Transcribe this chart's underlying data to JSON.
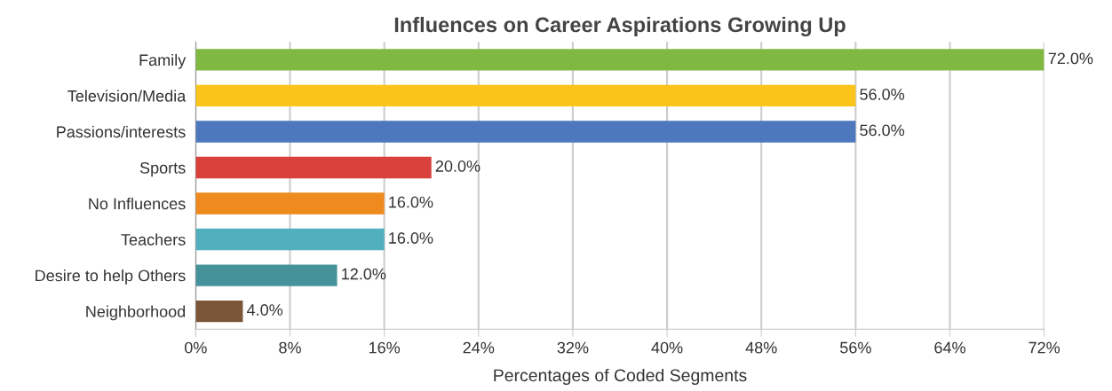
{
  "chart_data": {
    "type": "bar",
    "orientation": "horizontal",
    "title": "Influences on Career Aspirations Growing Up",
    "xlabel": "Percentages of Coded Segments",
    "categories": [
      "Family",
      "Television/Media",
      "Passions/interests",
      "Sports",
      "No Influences",
      "Teachers",
      "Desire to help Others",
      "Neighborhood"
    ],
    "values": [
      72.0,
      56.0,
      56.0,
      20.0,
      16.0,
      16.0,
      12.0,
      4.0
    ],
    "colors": [
      "#80b941",
      "#fbc41a",
      "#4d78be",
      "#d9413d",
      "#ef8a1e",
      "#52afbe",
      "#45929b",
      "#7b5537"
    ],
    "value_labels": [
      "72.0%",
      "56.0%",
      "56.0%",
      "20.0%",
      "16.0%",
      "16.0%",
      "12.0%",
      "4.0%"
    ],
    "xlim": [
      0,
      72
    ],
    "xticks": [
      {
        "value": 0,
        "label": "0%"
      },
      {
        "value": 8,
        "label": "8%"
      },
      {
        "value": 16,
        "label": "16%"
      },
      {
        "value": 24,
        "label": "24%"
      },
      {
        "value": 32,
        "label": "32%"
      },
      {
        "value": 40,
        "label": "40%"
      },
      {
        "value": 48,
        "label": "48%"
      },
      {
        "value": 56,
        "label": "56%"
      },
      {
        "value": 64,
        "label": "64%"
      },
      {
        "value": 72,
        "label": "72%"
      }
    ],
    "grid": "x",
    "legend": false
  }
}
